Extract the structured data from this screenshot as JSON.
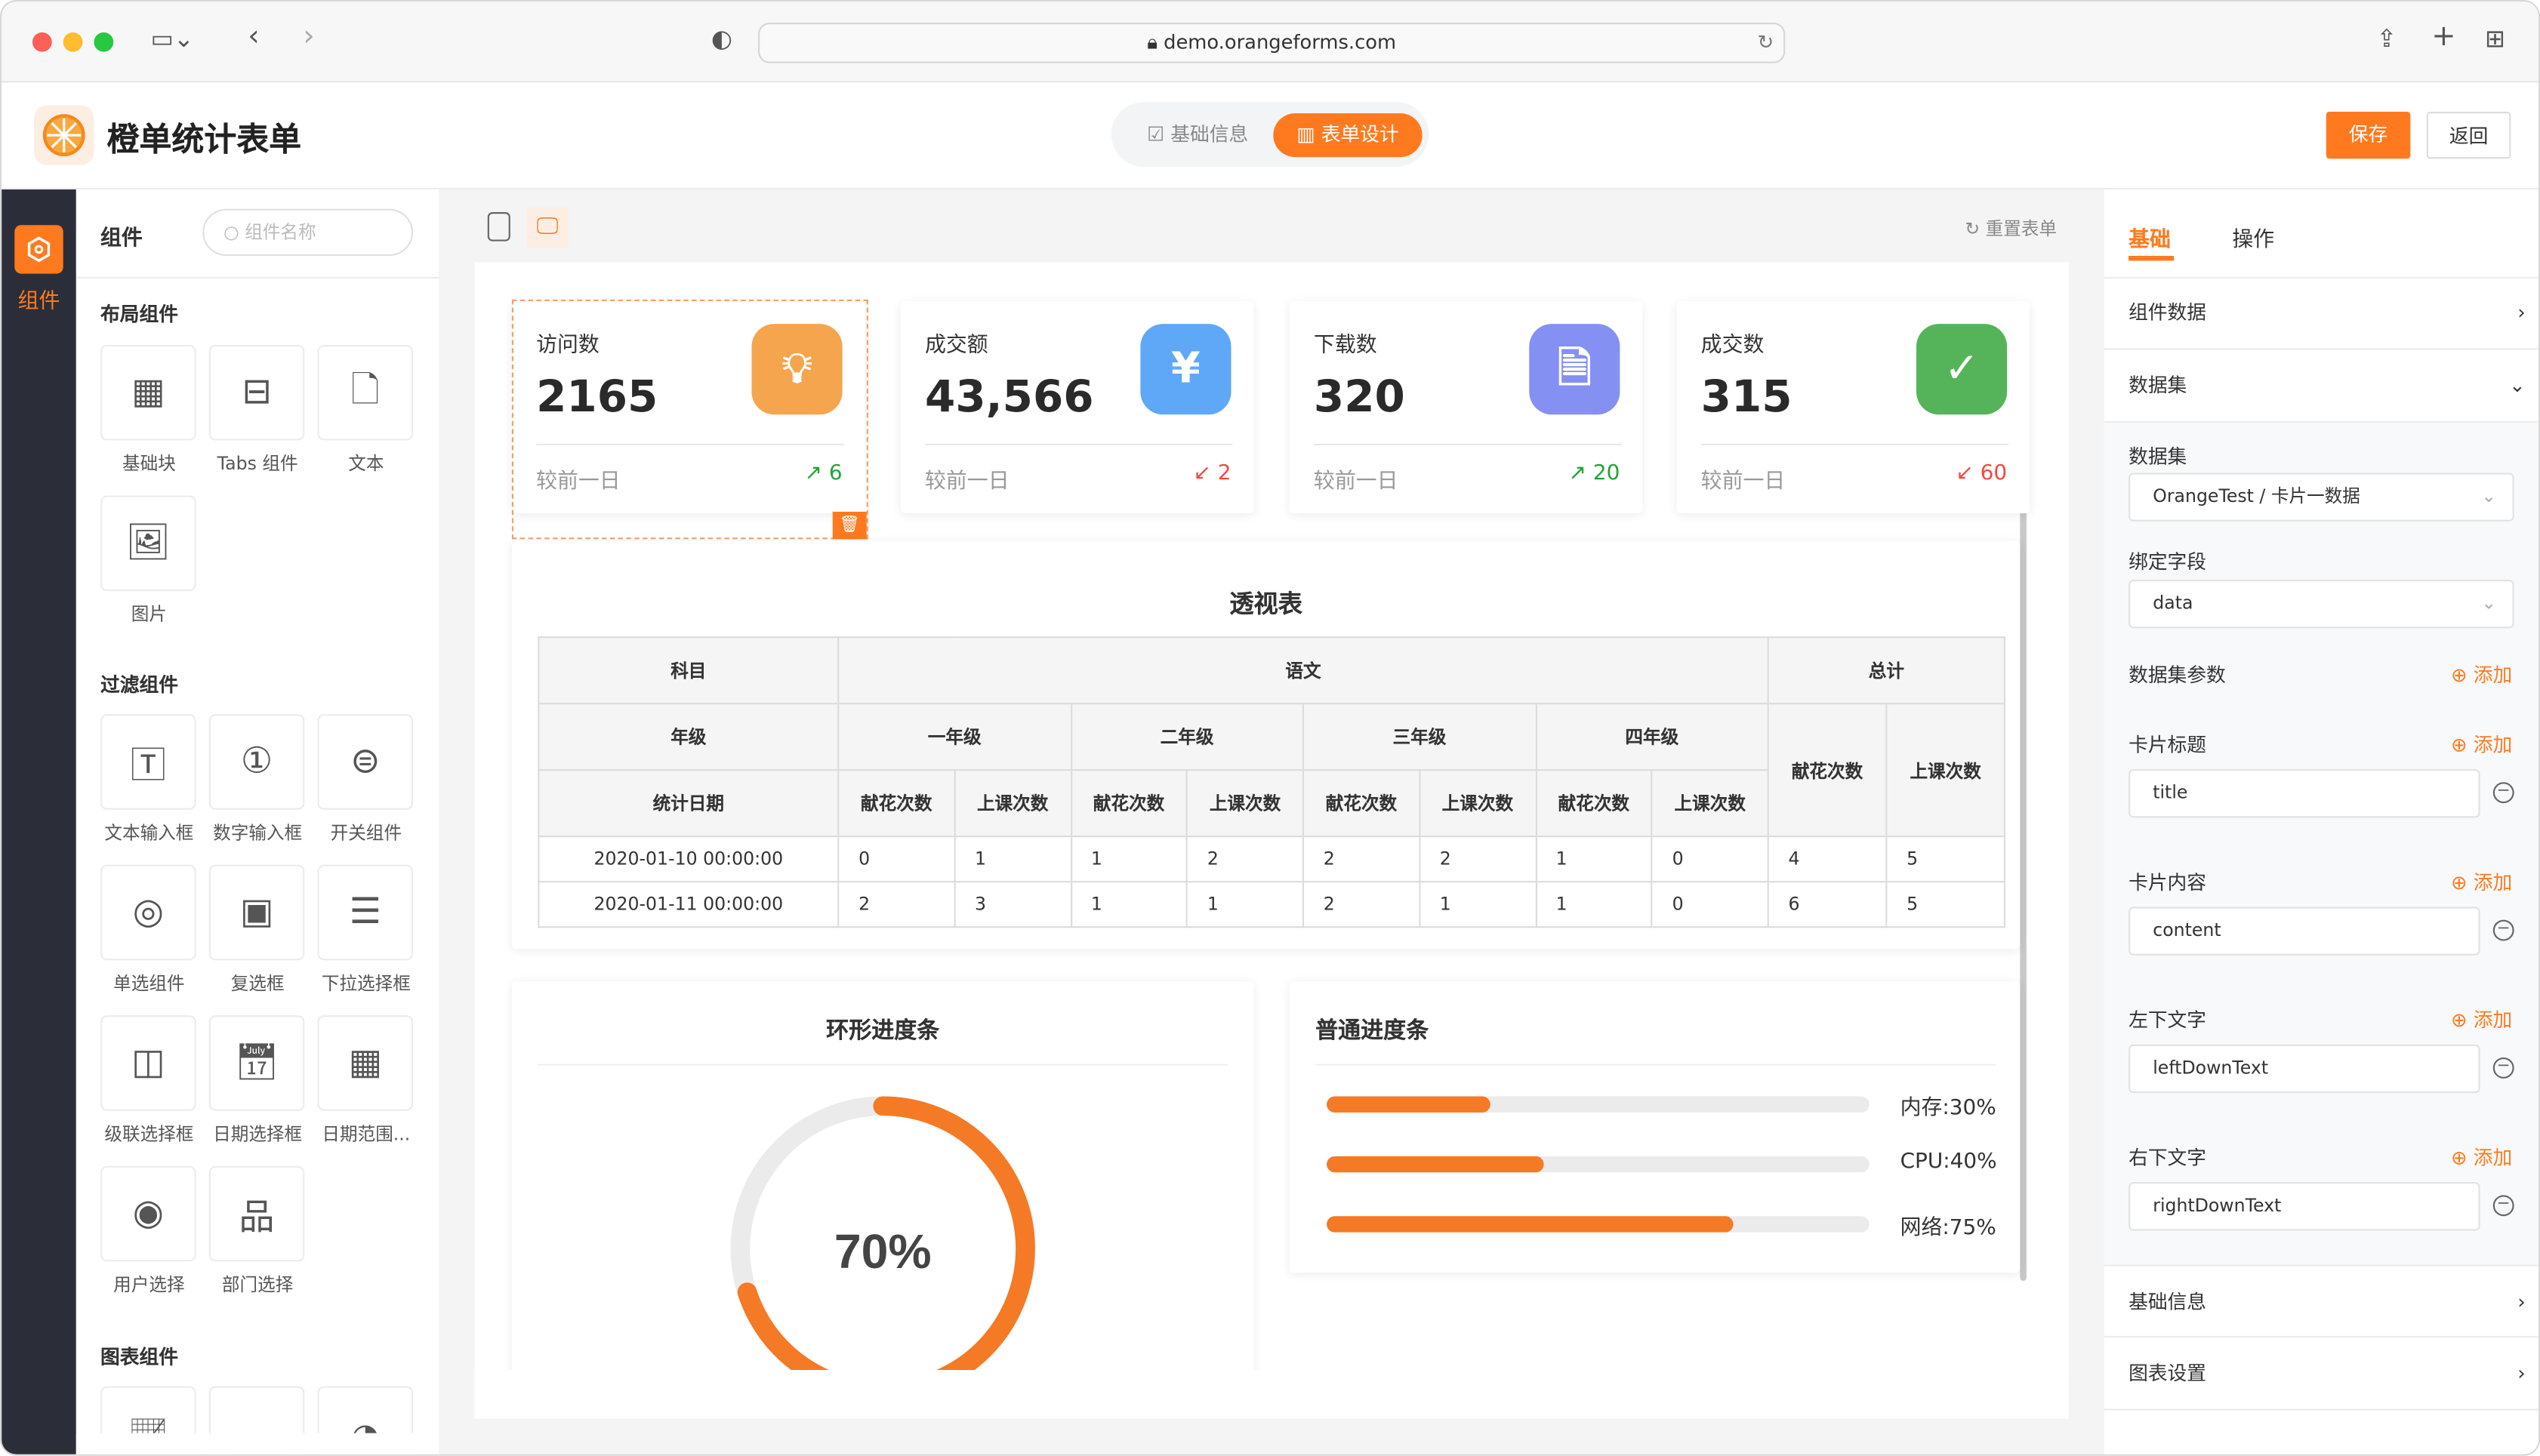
{
  "browser": {
    "url": "demo.orangeforms.com"
  },
  "header": {
    "title": "橙单统计表单",
    "tabs": [
      {
        "label": "基础信息",
        "active": false
      },
      {
        "label": "表单设计",
        "active": true
      }
    ],
    "save": "保存",
    "back": "返回"
  },
  "rail": {
    "label": "组件"
  },
  "left": {
    "title": "组件",
    "search_placeholder": "组件名称",
    "sections": [
      {
        "title": "布局组件",
        "items": [
          "基础块",
          "Tabs 组件",
          "文本",
          "图片"
        ]
      },
      {
        "title": "过滤组件",
        "items": [
          "文本输入框",
          "数字输入框",
          "开关组件",
          "单选组件",
          "复选框",
          "下拉选择框",
          "级联选择框",
          "日期选择框",
          "日期范围...",
          "用户选择",
          "部门选择"
        ]
      },
      {
        "title": "图表组件",
        "items": []
      }
    ]
  },
  "canvas": {
    "reset": "重置表单",
    "cards": [
      {
        "label": "访问数",
        "value": "2165",
        "sub": "较前一日",
        "delta": "6",
        "trend": "up",
        "color": "#f5a54e",
        "icon": "lightbulb-icon"
      },
      {
        "label": "成交额",
        "value": "43,566",
        "sub": "较前一日",
        "delta": "2",
        "trend": "down",
        "color": "#5fa8f8",
        "icon": "yuan-download-icon"
      },
      {
        "label": "下载数",
        "value": "320",
        "sub": "较前一日",
        "delta": "20",
        "trend": "up",
        "color": "#8490f2",
        "icon": "file-upload-icon"
      },
      {
        "label": "成交数",
        "value": "315",
        "sub": "较前一日",
        "delta": "60",
        "trend": "down",
        "color": "#55b459",
        "icon": "clipboard-check-icon"
      }
    ],
    "pivot": {
      "title": "透视表",
      "h_subject": "科目",
      "h_chinese": "语文",
      "h_total": "总计",
      "h_grade": "年级",
      "grades": [
        "一年级",
        "二年级",
        "三年级",
        "四年级"
      ],
      "h_date": "统计日期",
      "m1": "献花次数",
      "m2": "上课次数",
      "rows": [
        {
          "date": "2020-01-10 00:00:00",
          "vals": [
            "0",
            "1",
            "1",
            "2",
            "2",
            "2",
            "1",
            "0",
            "4",
            "5"
          ]
        },
        {
          "date": "2020-01-11 00:00:00",
          "vals": [
            "2",
            "3",
            "1",
            "1",
            "2",
            "1",
            "1",
            "0",
            "6",
            "5"
          ]
        }
      ]
    },
    "ring": {
      "title": "环形进度条",
      "value": 70,
      "label": "70%"
    },
    "bars": {
      "title": "普通进度条",
      "items": [
        {
          "label": "内存:30%",
          "value": 30
        },
        {
          "label": "CPU:40%",
          "value": 40
        },
        {
          "label": "网络:75%",
          "value": 75
        }
      ]
    }
  },
  "right": {
    "tabs": [
      "基础",
      "操作"
    ],
    "component_data": "组件数据",
    "dataset_section": "数据集",
    "dataset_label": "数据集",
    "dataset_value": "OrangeTest / 卡片一数据",
    "bind_label": "绑定字段",
    "bind_value": "data",
    "params_label": "数据集参数",
    "add": "添加",
    "fields": [
      {
        "label": "卡片标题",
        "value": "title"
      },
      {
        "label": "卡片内容",
        "value": "content"
      },
      {
        "label": "左下文字",
        "value": "leftDownText"
      },
      {
        "label": "右下文字",
        "value": "rightDownText"
      }
    ],
    "basic_info": "基础信息",
    "chart_settings": "图表设置"
  },
  "colors": {
    "accent": "#ff7a1e",
    "up": "#21a336",
    "down": "#f04a3e"
  }
}
